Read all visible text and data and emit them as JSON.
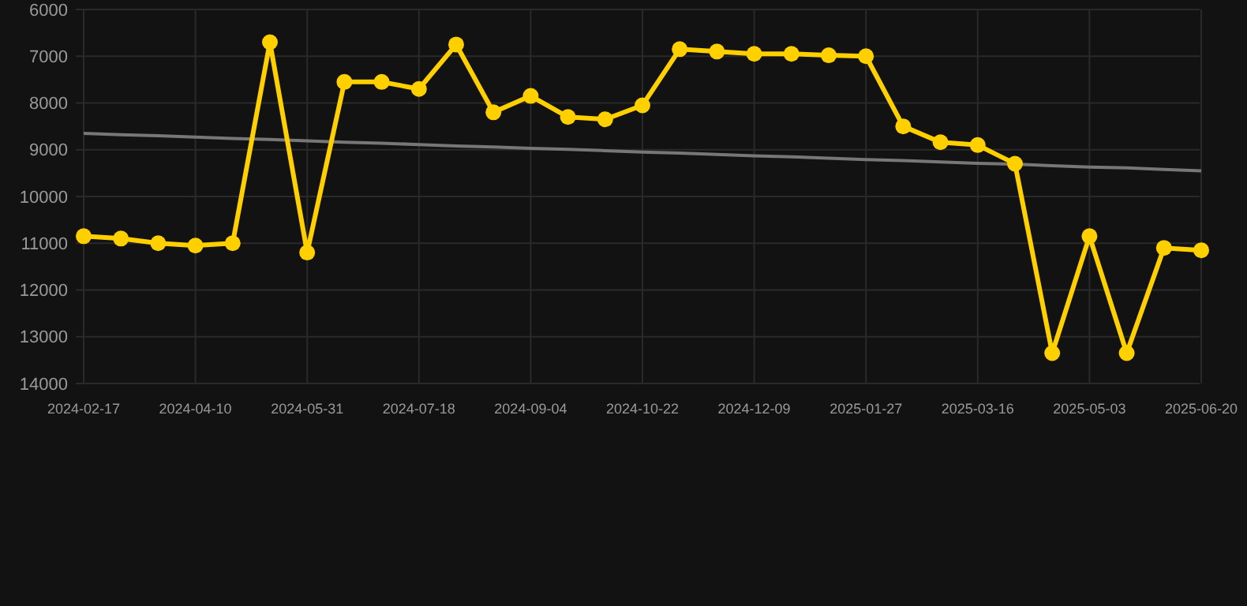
{
  "chart_data": {
    "type": "line",
    "categories": [
      "2024-02-17",
      null,
      null,
      "2024-04-10",
      null,
      null,
      "2024-05-31",
      null,
      null,
      "2024-07-18",
      null,
      null,
      "2024-09-04",
      null,
      null,
      "2024-10-22",
      null,
      null,
      "2024-12-09",
      null,
      null,
      "2025-01-27",
      null,
      null,
      "2025-03-16",
      null,
      null,
      "2025-05-03",
      null,
      null,
      "2025-06-20"
    ],
    "series": [
      {
        "color": "#ffd000",
        "marker": "circle",
        "values": [
          10850,
          10900,
          11000,
          11050,
          11000,
          6700,
          11200,
          7550,
          7550,
          7700,
          6750,
          8200,
          7850,
          8300,
          8350,
          8050,
          6850,
          6900,
          6950,
          6950,
          6980,
          7000,
          8500,
          8840,
          8900,
          9300,
          13350,
          10850,
          13350,
          11100,
          11150
        ]
      },
      {
        "color": "#777777",
        "marker": "none",
        "values": [
          8650,
          8680,
          8700,
          8730,
          8760,
          8780,
          8810,
          8840,
          8860,
          8890,
          8920,
          8940,
          8970,
          8990,
          9020,
          9050,
          9070,
          9100,
          9130,
          9150,
          9180,
          9210,
          9230,
          9260,
          9290,
          9310,
          9340,
          9370,
          9390,
          9420,
          9450
        ]
      }
    ],
    "ylim": [
      14000,
      6000
    ],
    "yticks": [
      6000,
      7000,
      8000,
      9000,
      10000,
      11000,
      12000,
      13000,
      14000
    ],
    "grid": true
  }
}
